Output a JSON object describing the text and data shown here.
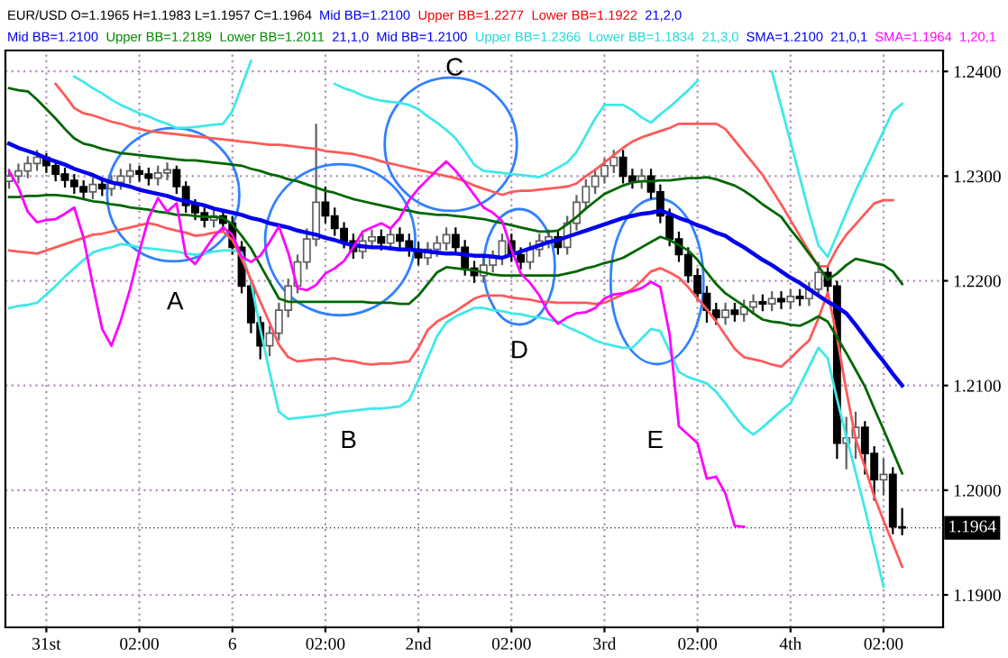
{
  "chart_data": {
    "type": "candlestick",
    "categories": [
      null,
      null,
      null,
      null,
      "31st",
      null,
      null,
      null,
      null,
      null,
      null,
      null,
      null,
      null,
      "02:00",
      null,
      null,
      null,
      null,
      null,
      null,
      null,
      null,
      null,
      "6",
      null,
      null,
      null,
      null,
      null,
      null,
      null,
      null,
      null,
      "02:00",
      null,
      null,
      null,
      null,
      null,
      null,
      null,
      null,
      null,
      "2nd",
      null,
      null,
      null,
      null,
      null,
      null,
      null,
      null,
      null,
      "02:00",
      null,
      null,
      null,
      null,
      null,
      null,
      null,
      null,
      null,
      "3rd",
      null,
      null,
      null,
      null,
      null,
      null,
      null,
      null,
      null,
      "02:00",
      null,
      null,
      null,
      null,
      null,
      null,
      null,
      null,
      null,
      "4th",
      null,
      null,
      null,
      null,
      null,
      null,
      null,
      null,
      null,
      "02:00",
      null,
      null
    ],
    "ohlc": [
      [
        1.2295,
        1.2307,
        1.2288,
        1.23
      ],
      [
        1.23,
        1.2312,
        1.2293,
        1.2305
      ],
      [
        1.2305,
        1.2319,
        1.2298,
        1.2312
      ],
      [
        1.2312,
        1.2325,
        1.2305,
        1.2318
      ],
      [
        1.2318,
        1.2322,
        1.2303,
        1.231
      ],
      [
        1.231,
        1.2315,
        1.2295,
        1.2302
      ],
      [
        1.2302,
        1.2308,
        1.2289,
        1.2296
      ],
      [
        1.2296,
        1.2302,
        1.2283,
        1.229
      ],
      [
        1.229,
        1.2296,
        1.2278,
        1.2285
      ],
      [
        1.2285,
        1.2299,
        1.2278,
        1.2292
      ],
      [
        1.2292,
        1.2298,
        1.2281,
        1.2288
      ],
      [
        1.2288,
        1.2301,
        1.2281,
        1.2294
      ],
      [
        1.2294,
        1.2307,
        1.2287,
        1.23
      ],
      [
        1.23,
        1.2312,
        1.2293,
        1.2305
      ],
      [
        1.2305,
        1.231,
        1.2295,
        1.2302
      ],
      [
        1.2302,
        1.2308,
        1.2291,
        1.2298
      ],
      [
        1.2298,
        1.231,
        1.2291,
        1.2303
      ],
      [
        1.2303,
        1.2313,
        1.2296,
        1.2306
      ],
      [
        1.2306,
        1.231,
        1.2283,
        1.229
      ],
      [
        1.229,
        1.2295,
        1.2265,
        1.2272
      ],
      [
        1.2272,
        1.2278,
        1.2258,
        1.2265
      ],
      [
        1.2265,
        1.227,
        1.2251,
        1.2258
      ],
      [
        1.2258,
        1.2269,
        1.2251,
        1.2262
      ],
      [
        1.2262,
        1.2268,
        1.2248,
        1.2255
      ],
      [
        1.2255,
        1.2262,
        1.2225,
        1.2232
      ],
      [
        1.2232,
        1.2238,
        1.2188,
        1.2195
      ],
      [
        1.2195,
        1.22,
        1.215,
        1.216
      ],
      [
        1.216,
        1.2166,
        1.2125,
        1.2138
      ],
      [
        1.2138,
        1.2157,
        1.2128,
        1.215
      ],
      [
        1.215,
        1.2179,
        1.2143,
        1.2172
      ],
      [
        1.2172,
        1.2202,
        1.2165,
        1.2195
      ],
      [
        1.2195,
        1.2225,
        1.2188,
        1.2218
      ],
      [
        1.2218,
        1.225,
        1.2211,
        1.224
      ],
      [
        1.224,
        1.235,
        1.2233,
        1.2275
      ],
      [
        1.2275,
        1.229,
        1.2255,
        1.2262
      ],
      [
        1.2262,
        1.227,
        1.2243,
        1.225
      ],
      [
        1.225,
        1.2256,
        1.2231,
        1.2238
      ],
      [
        1.2238,
        1.2245,
        1.2221,
        1.2228
      ],
      [
        1.2228,
        1.2245,
        1.2221,
        1.2238
      ],
      [
        1.2238,
        1.2249,
        1.2231,
        1.2242
      ],
      [
        1.2242,
        1.2249,
        1.2229,
        1.2236
      ],
      [
        1.2236,
        1.2251,
        1.2229,
        1.2244
      ],
      [
        1.2244,
        1.2251,
        1.2231,
        1.2238
      ],
      [
        1.2238,
        1.2245,
        1.2223,
        1.223
      ],
      [
        1.223,
        1.2237,
        1.2215,
        1.2222
      ],
      [
        1.2222,
        1.2237,
        1.2215,
        1.223
      ],
      [
        1.223,
        1.2243,
        1.2223,
        1.2236
      ],
      [
        1.2236,
        1.2251,
        1.2229,
        1.2244
      ],
      [
        1.2244,
        1.2251,
        1.2225,
        1.2232
      ],
      [
        1.2232,
        1.2239,
        1.2205,
        1.2212
      ],
      [
        1.2212,
        1.2219,
        1.2198,
        1.2205
      ],
      [
        1.2205,
        1.2222,
        1.2198,
        1.2215
      ],
      [
        1.2215,
        1.2229,
        1.2208,
        1.2222
      ],
      [
        1.2222,
        1.2245,
        1.2215,
        1.2238
      ],
      [
        1.2238,
        1.2245,
        1.2218,
        1.2225
      ],
      [
        1.2225,
        1.2232,
        1.2211,
        1.2218
      ],
      [
        1.2218,
        1.2237,
        1.2211,
        1.223
      ],
      [
        1.223,
        1.2245,
        1.2223,
        1.2238
      ],
      [
        1.2238,
        1.2249,
        1.2231,
        1.2242
      ],
      [
        1.2242,
        1.2249,
        1.2225,
        1.2232
      ],
      [
        1.2232,
        1.2262,
        1.2225,
        1.2255
      ],
      [
        1.2255,
        1.2282,
        1.2248,
        1.2275
      ],
      [
        1.2275,
        1.2297,
        1.2268,
        1.229
      ],
      [
        1.229,
        1.2307,
        1.2283,
        1.23
      ],
      [
        1.23,
        1.2317,
        1.2293,
        1.231
      ],
      [
        1.231,
        1.2325,
        1.2303,
        1.2318
      ],
      [
        1.2318,
        1.2325,
        1.2293,
        1.23
      ],
      [
        1.23,
        1.2307,
        1.2288,
        1.2295
      ],
      [
        1.2295,
        1.2307,
        1.2288,
        1.23
      ],
      [
        1.23,
        1.2307,
        1.2278,
        1.2285
      ],
      [
        1.2285,
        1.2292,
        1.2255,
        1.2262
      ],
      [
        1.2262,
        1.2269,
        1.2233,
        1.224
      ],
      [
        1.224,
        1.2247,
        1.2218,
        1.2225
      ],
      [
        1.2225,
        1.2232,
        1.2198,
        1.2205
      ],
      [
        1.2205,
        1.2212,
        1.2181,
        1.2188
      ],
      [
        1.2188,
        1.2195,
        1.216,
        1.2172
      ],
      [
        1.2172,
        1.2179,
        1.2158,
        1.2165
      ],
      [
        1.2165,
        1.2179,
        1.2158,
        1.2172
      ],
      [
        1.2172,
        1.2179,
        1.2161,
        1.2168
      ],
      [
        1.2168,
        1.2182,
        1.2161,
        1.2175
      ],
      [
        1.2175,
        1.2187,
        1.2168,
        1.218
      ],
      [
        1.218,
        1.2187,
        1.2171,
        1.2178
      ],
      [
        1.2178,
        1.219,
        1.2171,
        1.2183
      ],
      [
        1.2183,
        1.219,
        1.2173,
        1.218
      ],
      [
        1.218,
        1.2192,
        1.2173,
        1.2185
      ],
      [
        1.2185,
        1.2192,
        1.2176,
        1.2183
      ],
      [
        1.2183,
        1.2199,
        1.2176,
        1.2192
      ],
      [
        1.2192,
        1.2218,
        1.2185,
        1.2208
      ],
      [
        1.2208,
        1.2215,
        1.2188,
        1.2195
      ],
      [
        1.2195,
        1.22,
        1.203,
        1.2045
      ],
      [
        1.2045,
        1.207,
        1.202,
        1.205
      ],
      [
        1.205,
        1.2075,
        1.203,
        1.206
      ],
      [
        1.206,
        1.2066,
        1.2015,
        1.2035
      ],
      [
        1.2035,
        1.2042,
        1.199,
        1.201
      ],
      [
        1.201,
        1.203,
        1.1995,
        1.2015
      ],
      [
        1.2015,
        1.2022,
        1.1958,
        1.1965
      ],
      [
        1.1965,
        1.1983,
        1.1957,
        1.1964
      ]
    ],
    "series": [
      {
        "type": "line",
        "color": "#40e8e8",
        "values": [
          null,
          null,
          null,
          null,
          null,
          null,
          null,
          1.2395,
          1.239,
          1.2384,
          1.2379,
          1.2373,
          1.2368,
          1.2364,
          1.236,
          1.2357,
          1.2353,
          1.235,
          1.2346,
          1.2346,
          1.2347,
          1.2348,
          1.2349,
          1.235,
          1.2362,
          1.2386,
          1.241,
          null,
          null,
          null,
          null,
          null,
          null,
          null,
          null,
          1.2388,
          1.2384,
          1.2381,
          1.2377,
          1.2374,
          1.2372,
          1.2371,
          1.237,
          1.2368,
          1.2364,
          1.2357,
          1.2351,
          1.2344,
          1.2336,
          1.2324,
          1.2311,
          1.2305,
          1.2304,
          1.2303,
          1.2302,
          1.2301,
          1.23,
          1.2299,
          1.2303,
          1.2308,
          1.2313,
          1.2323,
          1.2339,
          1.2355,
          1.2368,
          1.2368,
          1.2368,
          1.2363,
          1.2356,
          1.2351,
          1.2359,
          1.2366,
          1.2374,
          1.2382,
          1.2391,
          null,
          null,
          null,
          null,
          null,
          null,
          null,
          1.24,
          1.2366,
          1.2333,
          1.2299,
          1.2265,
          1.2234,
          1.2223,
          1.2244,
          1.2265,
          1.2286,
          1.2305,
          1.2324,
          1.2343,
          1.2362,
          1.2369
        ]
      },
      {
        "type": "line",
        "color": "#40e8e8",
        "values": [
          1.2174,
          1.2176,
          1.2177,
          1.2179,
          1.2187,
          1.2195,
          1.2204,
          1.2212,
          1.222,
          1.2227,
          1.223,
          1.2232,
          1.2235,
          1.2234,
          1.2232,
          1.2231,
          1.223,
          1.2229,
          1.2228,
          1.2226,
          1.2225,
          1.2226,
          1.2228,
          1.2229,
          1.2229,
          1.2227,
          1.2199,
          1.2154,
          1.2113,
          1.2075,
          1.2068,
          1.2069,
          1.207,
          1.2071,
          1.2072,
          1.2074,
          1.2075,
          1.2076,
          1.2077,
          1.2078,
          1.2078,
          1.2079,
          1.208,
          1.2086,
          1.2105,
          1.2126,
          1.2147,
          1.216,
          1.2166,
          1.217,
          1.2174,
          1.2174,
          1.2172,
          1.2171,
          1.2169,
          1.2168,
          1.2166,
          1.2165,
          1.2163,
          1.2161,
          1.2156,
          1.2152,
          1.2148,
          1.2143,
          1.214,
          1.2138,
          1.2136,
          1.2136,
          1.2145,
          1.2154,
          1.2152,
          1.2133,
          1.2113,
          1.2108,
          1.2105,
          1.2102,
          1.2094,
          1.2083,
          1.2071,
          1.206,
          1.2053,
          1.206,
          1.2068,
          1.2076,
          1.2083,
          1.21,
          1.2118,
          1.2136,
          1.2126,
          1.2087,
          1.2051,
          1.2017,
          1.1982,
          1.1945,
          1.1908,
          null,
          null
        ]
      },
      {
        "type": "line",
        "color": "#ff5a5a",
        "values": [
          null,
          null,
          null,
          null,
          null,
          1.2388,
          1.2377,
          1.2365,
          1.236,
          1.2358,
          1.2355,
          1.2352,
          1.235,
          1.2347,
          1.2345,
          1.2343,
          1.2342,
          1.2341,
          1.234,
          1.2339,
          1.2338,
          1.2337,
          1.2336,
          1.2335,
          1.2334,
          1.2333,
          1.2332,
          1.2331,
          1.233,
          1.233,
          1.2329,
          1.2328,
          1.2327,
          1.2326,
          1.2324,
          1.2323,
          1.2322,
          1.2321,
          1.2319,
          1.2317,
          1.2314,
          1.2312,
          1.231,
          1.2308,
          1.2306,
          1.2304,
          1.2302,
          1.23,
          1.2298,
          1.2295,
          1.2291,
          1.2288,
          1.2285,
          1.2282,
          1.2285,
          1.2286,
          1.2286,
          1.2287,
          1.2288,
          1.2289,
          1.229,
          1.2293,
          1.23,
          1.2306,
          1.2313,
          1.232,
          1.2327,
          1.2333,
          1.2337,
          1.234,
          1.2343,
          1.2346,
          1.235,
          1.235,
          1.235,
          1.235,
          1.235,
          1.2345,
          1.2334,
          1.2323,
          1.2312,
          1.2301,
          1.2287,
          1.2273,
          1.2258,
          1.2243,
          1.2228,
          1.2214,
          1.2214,
          1.2231,
          1.2244,
          1.2254,
          1.2264,
          1.2274,
          1.2277,
          1.2277,
          null
        ]
      },
      {
        "type": "line",
        "color": "#ff5a5a",
        "values": [
          1.2229,
          1.2228,
          1.2227,
          1.2226,
          1.2229,
          1.2232,
          1.2235,
          1.2238,
          1.2241,
          1.2244,
          1.2245,
          1.2247,
          1.2249,
          1.2251,
          1.2253,
          1.2255,
          1.2253,
          1.225,
          1.2248,
          1.2246,
          1.2243,
          1.2244,
          1.2246,
          1.2247,
          1.2239,
          1.2221,
          1.2201,
          1.218,
          1.216,
          1.2139,
          1.2127,
          1.2123,
          1.2124,
          1.2125,
          1.2125,
          1.2126,
          1.2124,
          1.2123,
          1.2121,
          1.212,
          1.2121,
          1.2121,
          1.2122,
          1.2123,
          1.2136,
          1.2153,
          1.2161,
          1.2166,
          1.2171,
          1.2177,
          1.2183,
          1.2186,
          1.2186,
          1.2186,
          1.2184,
          1.2183,
          1.2182,
          1.218,
          1.218,
          1.2179,
          1.2179,
          1.2179,
          1.2179,
          1.2178,
          1.2179,
          1.2183,
          1.2187,
          1.2192,
          1.22,
          1.2209,
          1.2212,
          1.2208,
          1.2203,
          1.2194,
          1.2183,
          1.2173,
          1.2161,
          1.2148,
          1.2135,
          1.2127,
          1.2125,
          1.2123,
          1.212,
          1.2118,
          1.2126,
          1.2135,
          1.2143,
          1.2164,
          1.2189,
          1.2146,
          1.2095,
          1.2049,
          1.2022,
          1.1994,
          1.1971,
          1.1949,
          1.1927
        ]
      },
      {
        "type": "line",
        "color": "#006600",
        "values": [
          1.2384,
          1.2382,
          1.2381,
          1.2373,
          1.2364,
          1.2355,
          1.2345,
          1.2336,
          1.2331,
          1.2329,
          1.2326,
          1.2324,
          1.2322,
          1.2321,
          1.232,
          1.2319,
          1.2318,
          1.2317,
          1.2316,
          1.2315,
          1.2315,
          1.2314,
          1.2313,
          1.2312,
          1.2311,
          1.231,
          1.2307,
          1.2305,
          1.2302,
          1.23,
          1.2297,
          1.2295,
          1.2292,
          1.2289,
          1.2286,
          1.2284,
          1.2281,
          1.2278,
          1.2276,
          1.2274,
          1.2272,
          1.227,
          1.2268,
          1.2267,
          1.2265,
          1.2264,
          1.2263,
          1.2263,
          1.2262,
          1.2261,
          1.226,
          1.2259,
          1.2257,
          1.2255,
          1.2253,
          1.2251,
          1.2249,
          1.2247,
          1.2247,
          1.2248,
          1.2254,
          1.2261,
          1.2269,
          1.2276,
          1.2283,
          1.2287,
          1.2291,
          1.2294,
          1.2295,
          1.2295,
          1.2296,
          1.2296,
          1.2297,
          1.2298,
          1.2298,
          1.2299,
          1.2297,
          1.2294,
          1.2291,
          1.2286,
          1.228,
          1.2273,
          1.2267,
          1.2261,
          1.2249,
          1.2238,
          1.2226,
          1.2214,
          1.2201,
          1.2207,
          1.2215,
          1.2221,
          1.2219,
          1.2217,
          1.2215,
          1.2209,
          1.2197
        ]
      },
      {
        "type": "line",
        "color": "#006600",
        "values": [
          1.228,
          1.228,
          1.2281,
          1.2281,
          1.2282,
          1.2282,
          1.2281,
          1.228,
          1.2278,
          1.2276,
          1.2275,
          1.2273,
          1.2272,
          1.227,
          1.2269,
          1.2268,
          1.2266,
          1.2265,
          1.2263,
          1.2263,
          1.2262,
          1.2261,
          1.2261,
          1.226,
          1.2254,
          1.2243,
          1.2231,
          1.2215,
          1.2199,
          1.2183,
          1.218,
          1.218,
          1.218,
          1.218,
          1.218,
          1.218,
          1.218,
          1.218,
          1.218,
          1.2179,
          1.2179,
          1.2179,
          1.2178,
          1.2178,
          1.2186,
          1.2197,
          1.2208,
          1.2213,
          1.2212,
          1.2211,
          1.221,
          1.2208,
          1.2206,
          1.2205,
          1.2205,
          1.2205,
          1.2205,
          1.2205,
          1.2205,
          1.2205,
          1.2207,
          1.2209,
          1.2212,
          1.2214,
          1.2217,
          1.2219,
          1.2222,
          1.2227,
          1.2232,
          1.2237,
          1.2242,
          1.2239,
          1.2234,
          1.2229,
          1.222,
          1.2208,
          1.2197,
          1.2188,
          1.2182,
          1.2176,
          1.2169,
          1.2163,
          1.2161,
          1.216,
          1.2158,
          1.2157,
          1.2161,
          1.2166,
          1.2161,
          1.2146,
          1.2131,
          1.2115,
          1.2099,
          1.2078,
          1.2058,
          1.2037,
          1.2016
        ]
      },
      {
        "type": "line",
        "color": "#0000ee",
        "values": [
          1.2331,
          1.2327,
          1.2324,
          1.2321,
          1.2317,
          1.2314,
          1.2311,
          1.2307,
          1.2304,
          1.2301,
          1.2297,
          1.2294,
          1.2292,
          1.229,
          1.2287,
          1.2285,
          1.2283,
          1.2281,
          1.2278,
          1.2276,
          1.2274,
          1.2272,
          1.2269,
          1.2267,
          1.2265,
          1.2263,
          1.226,
          1.2258,
          1.2255,
          1.2253,
          1.2251,
          1.2248,
          1.2246,
          1.2244,
          1.2241,
          1.2239,
          1.2236,
          1.2234,
          1.2233,
          1.2232,
          1.2232,
          1.2231,
          1.223,
          1.223,
          1.2229,
          1.2228,
          1.2227,
          1.2226,
          1.2226,
          1.2225,
          1.2224,
          1.2224,
          1.2223,
          1.2222,
          1.2225,
          1.2228,
          1.2231,
          1.2234,
          1.2237,
          1.2239,
          1.2242,
          1.2245,
          1.2248,
          1.2251,
          1.2254,
          1.2257,
          1.226,
          1.2262,
          1.2264,
          1.2265,
          1.2267,
          1.2264,
          1.226,
          1.2257,
          1.2253,
          1.225,
          1.2246,
          1.2243,
          1.2237,
          1.2232,
          1.2226,
          1.222,
          1.2215,
          1.2209,
          1.2203,
          1.2198,
          1.2192,
          1.2186,
          1.218,
          1.2175,
          1.2169,
          1.2158,
          1.2146,
          1.2134,
          1.2123,
          1.2111,
          1.21
        ]
      },
      {
        "type": "line",
        "color": "#ff00ff",
        "values": [
          1.2305,
          1.2289,
          1.2266,
          1.2256,
          1.2258,
          1.2259,
          1.2264,
          1.227,
          1.2241,
          1.2196,
          1.2154,
          1.2138,
          1.2162,
          1.2192,
          1.2228,
          1.226,
          1.2279,
          1.2266,
          1.2274,
          1.2224,
          1.2216,
          1.2229,
          1.2242,
          1.2251,
          1.2244,
          1.2223,
          1.2218,
          1.2224,
          1.2237,
          1.2252,
          1.2227,
          1.2193,
          1.2191,
          1.2196,
          1.2207,
          1.2212,
          1.2219,
          1.2232,
          1.2247,
          1.2251,
          1.2255,
          1.225,
          1.226,
          1.2277,
          1.2288,
          1.2297,
          1.2306,
          1.2314,
          1.2305,
          1.2294,
          1.2282,
          1.227,
          1.2265,
          1.2257,
          1.223,
          1.2207,
          1.2198,
          1.2186,
          1.2169,
          1.2159,
          1.2165,
          1.2169,
          1.217,
          1.2174,
          1.2183,
          1.2187,
          1.2188,
          1.219,
          1.2193,
          1.2199,
          1.2194,
          1.2149,
          1.2061,
          1.2053,
          1.2045,
          1.2011,
          1.2013,
          1.1997,
          1.1966,
          1.1965,
          null,
          null,
          null,
          null,
          null,
          null,
          null,
          null,
          null,
          null,
          null,
          null,
          null,
          null,
          null,
          null,
          null
        ]
      }
    ],
    "ylim": [
      1.1869,
      1.242
    ],
    "yticks": [
      {
        "value": 1.19,
        "label": "1.1900"
      },
      {
        "value": 1.2,
        "label": "1.2000"
      },
      {
        "value": 1.21,
        "label": "1.2100"
      },
      {
        "value": 1.22,
        "label": "1.2200"
      },
      {
        "value": 1.23,
        "label": "1.2300"
      },
      {
        "value": 1.24,
        "label": "1.2400"
      }
    ],
    "ref_lines": [
      {
        "axis": "y",
        "value": 1.1964,
        "label": "1.1964",
        "color": "#000000"
      }
    ],
    "grid": true,
    "legend": false,
    "annotations": [
      "EUR/USD O=1.1965 H=1.1983 L=1.1957 C=1.1964",
      "Mid BB=1.2100",
      "Upper BB=1.2277",
      "Lower BB=1.1922",
      "21,2,0",
      "Mid BB=1.2100",
      "Upper BB=1.2189",
      "Lower BB=1.2011",
      "21,1,0",
      "Mid BB=1.2100",
      "Upper BB=1.2366",
      "Lower BB=1.1834",
      "21,3,0",
      "SMA=1.2100",
      "21,0,1",
      "SMA=1.1964",
      "1,20,1",
      "A",
      "B",
      "C",
      "D",
      "E"
    ]
  }
}
